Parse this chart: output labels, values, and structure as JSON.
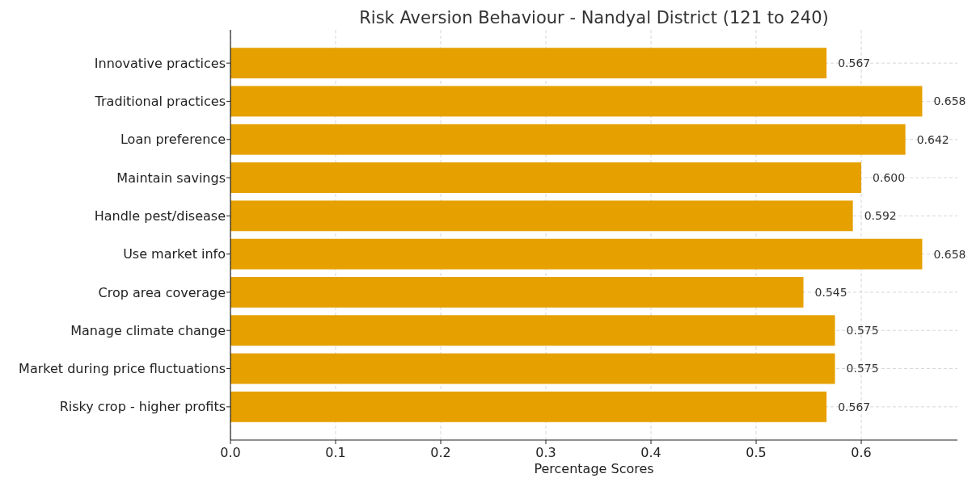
{
  "chart_data": {
    "type": "bar",
    "orientation": "horizontal",
    "title": "Risk Aversion Behaviour - Nandyal District (121 to 240)",
    "xlabel": "Percentage Scores",
    "categories": [
      "Innovative practices",
      "Traditional practices",
      "Loan preference",
      "Maintain savings",
      "Handle pest/disease",
      "Use market info",
      "Crop area coverage",
      "Manage climate change",
      "Market during price fluctuations",
      "Risky crop - higher profits"
    ],
    "values": [
      0.567,
      0.658,
      0.642,
      0.6,
      0.592,
      0.658,
      0.545,
      0.575,
      0.575,
      0.567
    ],
    "value_labels": [
      "0.567",
      "0.658",
      "0.642",
      "0.600",
      "0.592",
      "0.658",
      "0.545",
      "0.575",
      "0.575",
      "0.567"
    ],
    "color": "#e6a000",
    "xlim": [
      0,
      0.6915
    ],
    "xticks": [
      {
        "value": 0,
        "label": "0.0"
      },
      {
        "value": 0.1,
        "label": "0.1"
      },
      {
        "value": 0.2,
        "label": "0.2"
      },
      {
        "value": 0.3,
        "label": "0.3"
      },
      {
        "value": 0.4,
        "label": "0.4"
      },
      {
        "value": 0.5,
        "label": "0.5"
      },
      {
        "value": 0.6,
        "label": "0.6"
      }
    ],
    "grid": true
  }
}
